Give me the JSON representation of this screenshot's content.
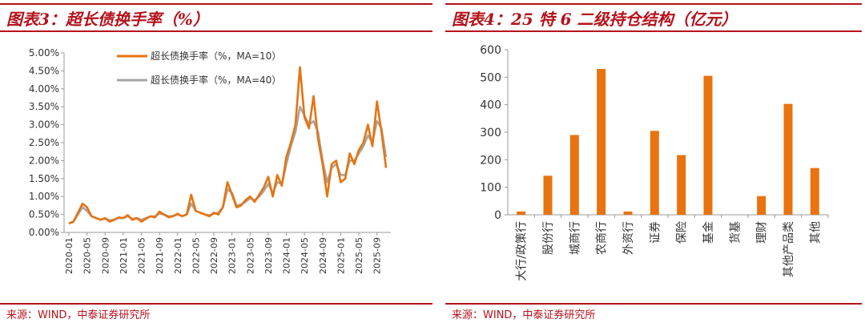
{
  "left_panel": {
    "title": "图表3：超长债换手率（%）",
    "source": "来源：WIND，中泰证券研究所"
  },
  "right_panel": {
    "title": "图表4：25 特 6 二级持仓结构（亿元）",
    "source": "来源：WIND，中泰证券研究所"
  },
  "chart_data": [
    {
      "type": "line",
      "title": "",
      "xlabel": "",
      "ylabel": "",
      "ylim": [
        0,
        5
      ],
      "y_ticks": [
        "0.00%",
        "0.50%",
        "1.00%",
        "1.50%",
        "2.00%",
        "2.50%",
        "3.00%",
        "3.50%",
        "4.00%",
        "4.50%",
        "5.00%"
      ],
      "x_ticks": [
        "2020-01",
        "2020-05",
        "2020-09",
        "2021-01",
        "2021-05",
        "2021-09",
        "2022-01",
        "2022-05",
        "2022-09",
        "2023-01",
        "2023-05",
        "2023-09",
        "2024-01",
        "2024-05",
        "2024-09",
        "2025-01",
        "2025-05",
        "2025-09"
      ],
      "grid": false,
      "legend_position": "top-left",
      "x": [
        "2020-01",
        "2020-02",
        "2020-03",
        "2020-04",
        "2020-05",
        "2020-06",
        "2020-07",
        "2020-08",
        "2020-09",
        "2020-10",
        "2020-11",
        "2020-12",
        "2021-01",
        "2021-02",
        "2021-03",
        "2021-04",
        "2021-05",
        "2021-06",
        "2021-07",
        "2021-08",
        "2021-09",
        "2021-10",
        "2021-11",
        "2021-12",
        "2022-01",
        "2022-02",
        "2022-03",
        "2022-04",
        "2022-05",
        "2022-06",
        "2022-07",
        "2022-08",
        "2022-09",
        "2022-10",
        "2022-11",
        "2022-12",
        "2023-01",
        "2023-02",
        "2023-03",
        "2023-04",
        "2023-05",
        "2023-06",
        "2023-07",
        "2023-08",
        "2023-09",
        "2023-10",
        "2023-11",
        "2023-12",
        "2024-01",
        "2024-02",
        "2024-03",
        "2024-04",
        "2024-05",
        "2024-06",
        "2024-07",
        "2024-08",
        "2024-09",
        "2024-10",
        "2024-11",
        "2024-12",
        "2025-01",
        "2025-02",
        "2025-03",
        "2025-04",
        "2025-05",
        "2025-06",
        "2025-07",
        "2025-08",
        "2025-09",
        "2025-10",
        "2025-11"
      ],
      "series": [
        {
          "name": "超长债换手率（%，MA=10）",
          "color": "#e8730f",
          "values": [
            0.25,
            0.3,
            0.55,
            0.8,
            0.7,
            0.45,
            0.4,
            0.35,
            0.4,
            0.3,
            0.35,
            0.42,
            0.4,
            0.48,
            0.35,
            0.4,
            0.3,
            0.38,
            0.45,
            0.42,
            0.58,
            0.5,
            0.42,
            0.45,
            0.52,
            0.45,
            0.5,
            1.05,
            0.6,
            0.55,
            0.5,
            0.45,
            0.55,
            0.5,
            0.7,
            1.4,
            1.05,
            0.7,
            0.75,
            0.9,
            1.0,
            0.85,
            1.05,
            1.25,
            1.55,
            1.0,
            1.6,
            1.3,
            2.1,
            2.5,
            3.0,
            4.6,
            3.2,
            2.9,
            3.8,
            2.6,
            1.9,
            1.0,
            1.9,
            2.0,
            1.4,
            1.5,
            2.2,
            1.9,
            2.3,
            2.5,
            3.0,
            2.4,
            3.65,
            2.8,
            1.8
          ]
        },
        {
          "name": "超长债换手率（%，MA=40）",
          "color": "#a6a6a6",
          "values": [
            0.25,
            0.3,
            0.5,
            0.7,
            0.6,
            0.45,
            0.4,
            0.36,
            0.38,
            0.34,
            0.36,
            0.4,
            0.4,
            0.45,
            0.38,
            0.4,
            0.35,
            0.4,
            0.44,
            0.45,
            0.52,
            0.5,
            0.45,
            0.46,
            0.5,
            0.46,
            0.5,
            0.8,
            0.6,
            0.55,
            0.5,
            0.48,
            0.52,
            0.55,
            0.7,
            1.2,
            1.1,
            0.75,
            0.78,
            0.85,
            0.95,
            0.9,
            1.0,
            1.15,
            1.35,
            1.1,
            1.4,
            1.35,
            1.9,
            2.4,
            2.8,
            3.5,
            3.25,
            3.0,
            3.1,
            2.8,
            2.0,
            1.4,
            1.8,
            1.9,
            1.6,
            1.6,
            2.0,
            2.0,
            2.2,
            2.4,
            2.7,
            2.5,
            3.1,
            2.9,
            2.1
          ]
        }
      ]
    },
    {
      "type": "bar",
      "title": "",
      "xlabel": "",
      "ylabel": "",
      "ylim": [
        0,
        600
      ],
      "y_ticks": [
        "0",
        "100",
        "200",
        "300",
        "400",
        "500",
        "600"
      ],
      "grid": false,
      "color": "#e8730f",
      "categories": [
        "大行/政策行",
        "股份行",
        "城商行",
        "农商行",
        "外资行",
        "证券",
        "保险",
        "基金",
        "货基",
        "理财",
        "其他产品类",
        "其他"
      ],
      "values": [
        12,
        142,
        290,
        530,
        12,
        305,
        217,
        505,
        0,
        68,
        403,
        170
      ]
    }
  ]
}
